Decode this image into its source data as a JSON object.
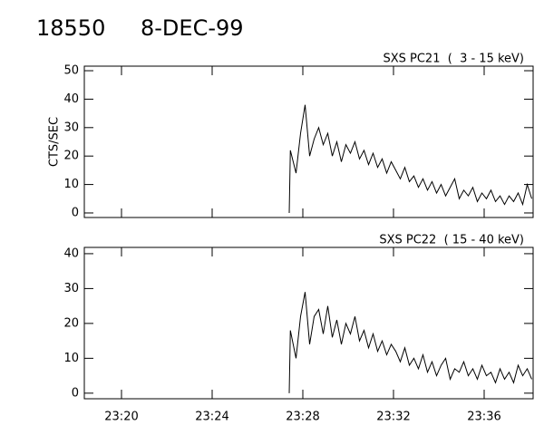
{
  "header": {
    "id": "18550",
    "date": "8-DEC-99"
  },
  "chart_data": [
    {
      "type": "line",
      "title": "SXS PC21  (  3 - 15 keV)",
      "ylabel": "CTS/SEC",
      "color": "#000000",
      "x": [
        1407.4,
        1407.45,
        1407.7,
        1407.9,
        1408.1,
        1408.3,
        1408.5,
        1408.7,
        1408.9,
        1409.1,
        1409.3,
        1409.5,
        1409.7,
        1409.9,
        1410.1,
        1410.3,
        1410.5,
        1410.7,
        1410.9,
        1411.1,
        1411.3,
        1411.5,
        1411.7,
        1411.9,
        1412.1,
        1412.3,
        1412.5,
        1412.7,
        1412.9,
        1413.1,
        1413.3,
        1413.5,
        1413.7,
        1413.9,
        1414.1,
        1414.3,
        1414.5,
        1414.7,
        1414.9,
        1415.1,
        1415.3,
        1415.5,
        1415.7,
        1415.9,
        1416.1,
        1416.3,
        1416.5,
        1416.7,
        1416.9,
        1417.1,
        1417.3,
        1417.5,
        1417.7,
        1417.9,
        1418.1
      ],
      "values": [
        0,
        22,
        14,
        28,
        38,
        20,
        26,
        30,
        24,
        28,
        20,
        25,
        18,
        24,
        21,
        25,
        19,
        22,
        17,
        21,
        16,
        19,
        14,
        18,
        15,
        12,
        16,
        11,
        13,
        9,
        12,
        8,
        11,
        7,
        10,
        6,
        9,
        12,
        5,
        8,
        6,
        9,
        4,
        7,
        5,
        8,
        4,
        6,
        3,
        6,
        4,
        7,
        3,
        10,
        5
      ],
      "xlim": [
        1398.36,
        1418.16
      ],
      "xticks": [
        1400,
        1404,
        1408,
        1412,
        1416
      ],
      "ylim": [
        -1.6,
        51.6
      ],
      "yticks": [
        0,
        10,
        20,
        30,
        40,
        50
      ]
    },
    {
      "type": "line",
      "title": "SXS PC22  ( 15 - 40 keV)",
      "color": "#000000",
      "x": [
        1407.4,
        1407.45,
        1407.7,
        1407.9,
        1408.1,
        1408.3,
        1408.5,
        1408.7,
        1408.9,
        1409.1,
        1409.3,
        1409.5,
        1409.7,
        1409.9,
        1410.1,
        1410.3,
        1410.5,
        1410.7,
        1410.9,
        1411.1,
        1411.3,
        1411.5,
        1411.7,
        1411.9,
        1412.1,
        1412.3,
        1412.5,
        1412.7,
        1412.9,
        1413.1,
        1413.3,
        1413.5,
        1413.7,
        1413.9,
        1414.1,
        1414.3,
        1414.5,
        1414.7,
        1414.9,
        1415.1,
        1415.3,
        1415.5,
        1415.7,
        1415.9,
        1416.1,
        1416.3,
        1416.5,
        1416.7,
        1416.9,
        1417.1,
        1417.3,
        1417.5,
        1417.7,
        1417.9,
        1418.1
      ],
      "values": [
        0,
        18,
        10,
        22,
        29,
        14,
        22,
        24,
        17,
        25,
        16,
        21,
        14,
        20,
        17,
        22,
        15,
        18,
        13,
        17,
        12,
        15,
        11,
        14,
        12,
        9,
        13,
        8,
        10,
        7,
        11,
        6,
        9,
        5,
        8,
        10,
        4,
        7,
        6,
        9,
        5,
        7,
        4,
        8,
        5,
        6,
        3,
        7,
        4,
        6,
        3,
        8,
        5,
        7,
        4
      ],
      "xlim": [
        1398.36,
        1418.16
      ],
      "xticks": [
        {
          "value": 1400,
          "label": "23:20"
        },
        {
          "value": 1404,
          "label": "23:24"
        },
        {
          "value": 1408,
          "label": "23:28"
        },
        {
          "value": 1412,
          "label": "23:32"
        },
        {
          "value": 1416,
          "label": "23:36"
        }
      ],
      "ylim": [
        -1.6,
        41.8
      ],
      "yticks": [
        0,
        10,
        20,
        30,
        40
      ]
    }
  ]
}
